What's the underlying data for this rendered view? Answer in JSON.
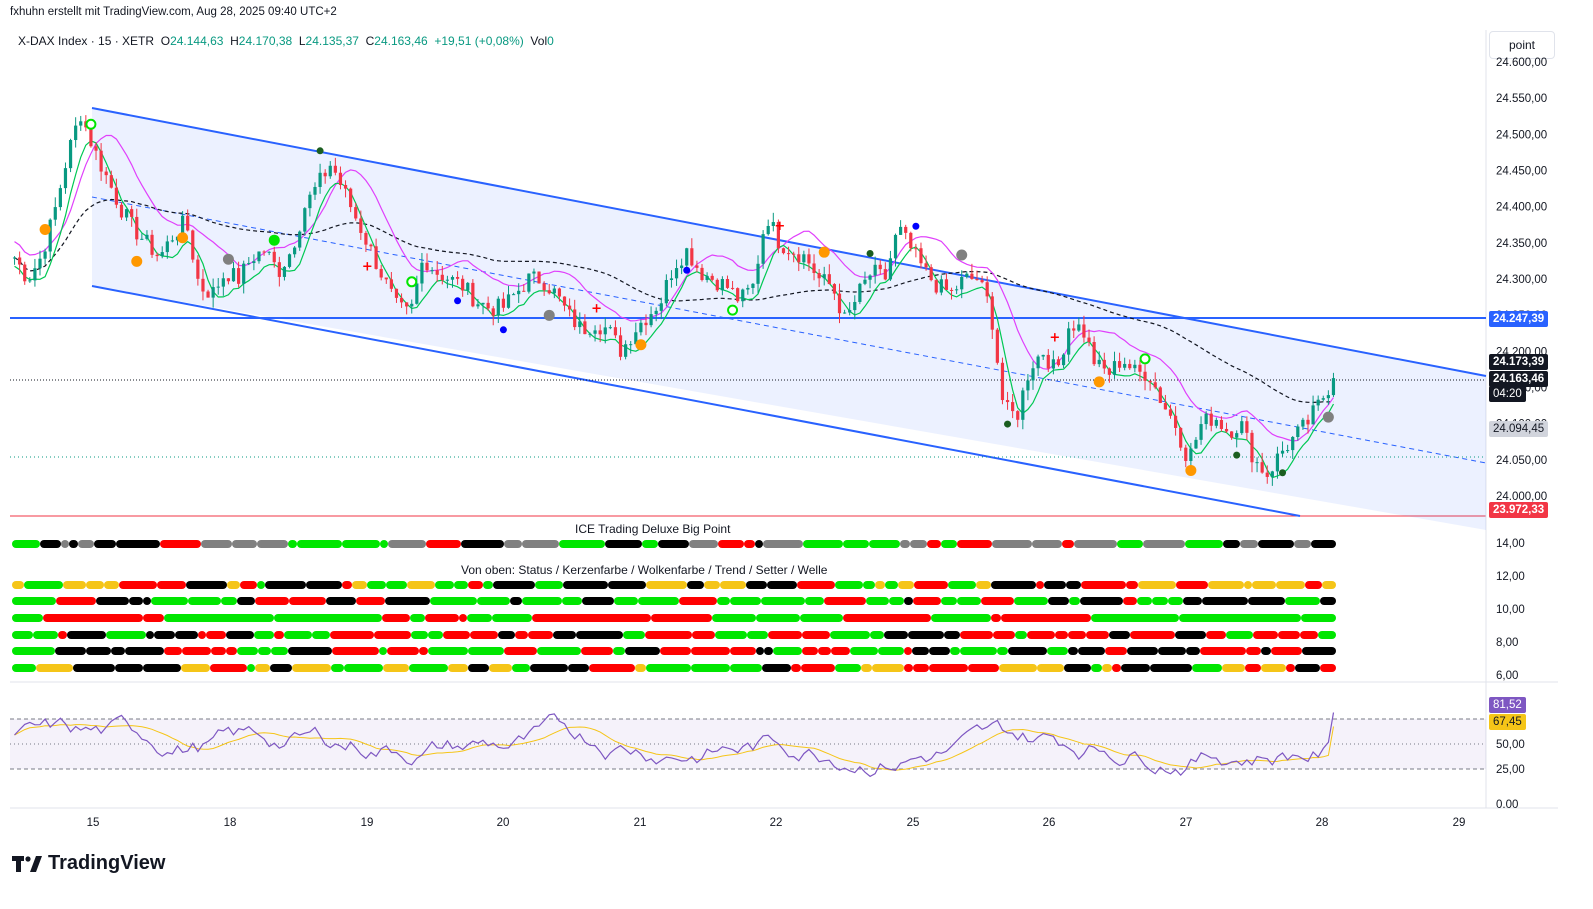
{
  "header": {
    "caption": "fxhuhn erstellt mit TradingView.com, Aug 28, 2025 09:40 UTC+2",
    "symbol": "X-DAX Index · 15 · XETR",
    "o_label": "O",
    "o_value": "24.144,63",
    "h_label": "H",
    "h_value": "24.170,38",
    "l_label": "L",
    "l_value": "24.135,37",
    "c_label": "C",
    "c_value": "24.163,46",
    "change": "+19,51 (+0,08%)",
    "vol_label": "Vol",
    "vol_value": "0"
  },
  "toolbar": {
    "unit_button": "point"
  },
  "panes": {
    "indicator1_title": "ICE Trading Deluxe Big Point",
    "indicator2_title": "Von oben: Status / Kerzenfarbe / Wolkenfarbe / Trend / Setter / Welle"
  },
  "price_tags": {
    "blue_line": "24.247,39",
    "last_price": "24.173,39",
    "close_price": "24.163,46",
    "countdown": "04:20",
    "grey_level": "24.094,45",
    "red_level": "23.972,33",
    "rsi_value": "81,52",
    "rsi_ma": "67,45"
  },
  "colors": {
    "up": "#089981",
    "down": "#f23645",
    "channel": "#2962ff",
    "green": "#00e600",
    "red": "#ff0000",
    "magenta": "#e040fb",
    "purple": "#7e57c2",
    "yellow": "#f5c518"
  },
  "chart_data": {
    "type": "candlestick",
    "price_axis": [
      "24.600,00",
      "24.550,00",
      "24.500,00",
      "24.450,00",
      "24.400,00",
      "24.350,00",
      "24.300,00",
      "24.250,00",
      "24.200,00",
      "24.150,00",
      "24.100,00",
      "24.050,00",
      "24.000,00"
    ],
    "x_ticks": [
      "15",
      "18",
      "19",
      "20",
      "21",
      "22",
      "25",
      "26",
      "27",
      "28",
      "29"
    ],
    "ylim": [
      23972,
      24600
    ],
    "close_path": [
      24330,
      24300,
      24330,
      24390,
      24470,
      24530,
      24480,
      24440,
      24400,
      24370,
      24350,
      24330,
      24360,
      24380,
      24290,
      24280,
      24310,
      24300,
      24330,
      24340,
      24310,
      24340,
      24400,
      24430,
      24460,
      24420,
      24380,
      24340,
      24300,
      24260,
      24250,
      24330,
      24310,
      24300,
      24290,
      24270,
      24260,
      24260,
      24280,
      24300,
      24300,
      24280,
      24250,
      24230,
      24240,
      24230,
      24200,
      24230,
      24250,
      24270,
      24320,
      24340,
      24310,
      24300,
      24290,
      24270,
      24290,
      24390,
      24350,
      24340,
      24330,
      24300,
      24290,
      24240,
      24280,
      24310,
      24300,
      24370,
      24340,
      24310,
      24290,
      24280,
      24300,
      24300,
      24260,
      24120,
      24110,
      24180,
      24200,
      24170,
      24240,
      24230,
      24180,
      24170,
      24190,
      24170,
      24170,
      24130,
      24100,
      24050,
      24100,
      24110,
      24090,
      24100,
      24050,
      24030,
      24060,
      24080,
      24100,
      24130,
      24163
    ],
    "indicator_axis": [
      "14,00",
      "12,00",
      "10,00",
      "8,00",
      "6,00"
    ],
    "rsi_axis": [
      "75,00",
      "50,00",
      "25,00",
      "0.00"
    ],
    "rsi_last": 81.52,
    "rsi_ma_last": 67.45
  },
  "brand": {
    "name": "TradingView"
  }
}
